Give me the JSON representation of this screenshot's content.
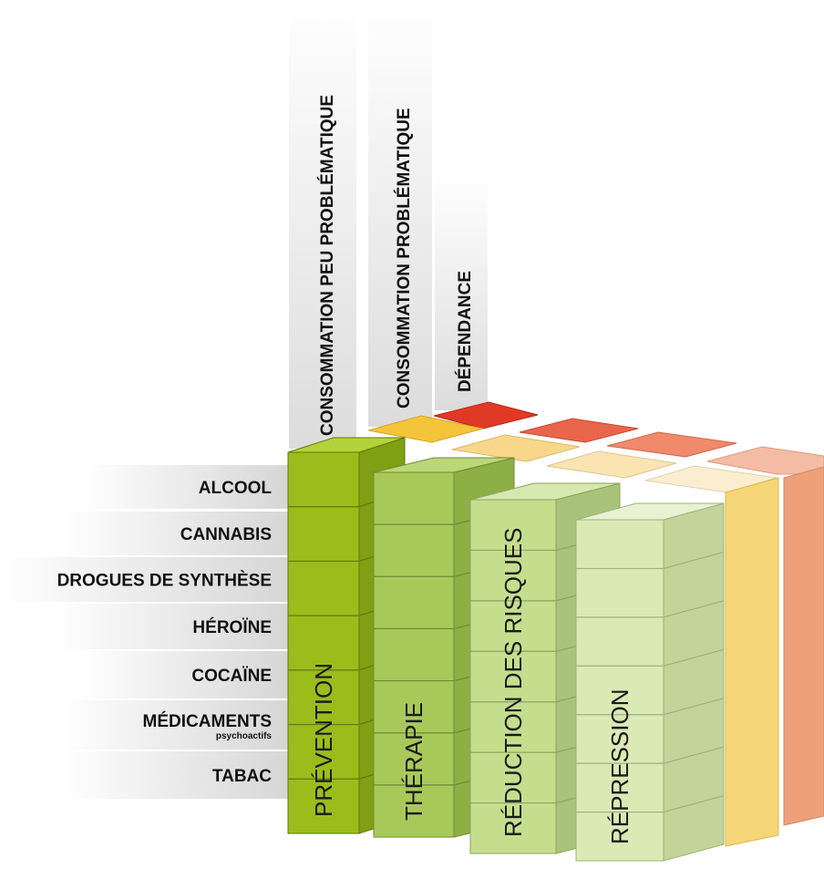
{
  "dimensions": [
    {
      "id": "peu",
      "label": "CONSOMMATION PEU PROBLÉMATIQUE"
    },
    {
      "id": "prob",
      "label": "CONSOMMATION PROBLÉMATIQUE"
    },
    {
      "id": "dep",
      "label": "DÉPENDANCE"
    }
  ],
  "substances": [
    {
      "id": "alcool",
      "label": "ALCOOL"
    },
    {
      "id": "cannabis",
      "label": "CANNABIS"
    },
    {
      "id": "synthese",
      "label": "DROGUES DE SYNTHÈSE"
    },
    {
      "id": "heroine",
      "label": "HÉROÏNE"
    },
    {
      "id": "cocaine",
      "label": "COCAÏNE"
    },
    {
      "id": "medicaments",
      "label": "MÉDICAMENTS",
      "sublabel": "psychoactifs"
    },
    {
      "id": "tabac",
      "label": "TABAC"
    }
  ],
  "pillars": [
    {
      "id": "prevention",
      "label": "PRÉVENTION"
    },
    {
      "id": "therapie",
      "label": "THÉRAPIE"
    },
    {
      "id": "reduction",
      "label": "RÉDUCTION DES RISQUES"
    },
    {
      "id": "repression",
      "label": "RÉPRESSION"
    }
  ],
  "colors": {
    "green_1": "#9abd1c",
    "green_2": "#a8c95a",
    "green_3": "#c5de8e",
    "green_4": "#dbe9b4",
    "red_top": "#e03a27",
    "orange_top": "#f4c43a",
    "back_orange": "#eea178",
    "back_yellow": "#f5d676",
    "label_band": "#ececec"
  }
}
